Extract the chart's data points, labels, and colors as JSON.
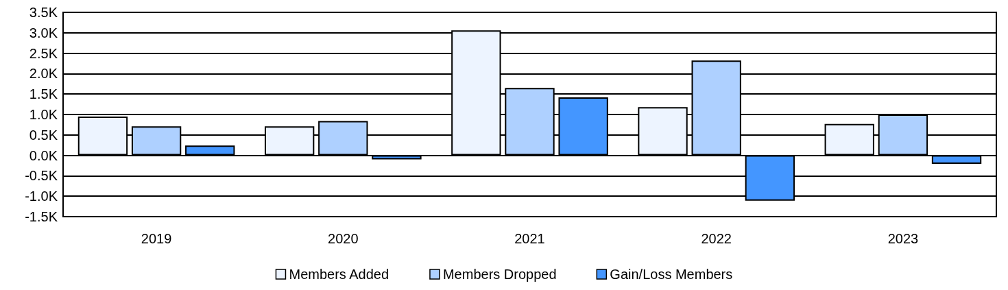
{
  "chart_data": {
    "type": "bar",
    "categories": [
      "2019",
      "2020",
      "2021",
      "2022",
      "2023"
    ],
    "series": [
      {
        "name": "Members Added",
        "color": "#edf4ff",
        "values": [
          950,
          710,
          3060,
          1180,
          770
        ]
      },
      {
        "name": "Members Dropped",
        "color": "#aed0ff",
        "values": [
          710,
          840,
          1650,
          2320,
          1000
        ]
      },
      {
        "name": "Gain/Loss Members",
        "color": "#4496ff",
        "values": [
          240,
          -100,
          1420,
          -1110,
          -210
        ]
      }
    ],
    "ylim": [
      -1500,
      3500
    ],
    "yticks": [
      {
        "value": -1500,
        "label": "-1.5K"
      },
      {
        "value": -1000,
        "label": "-1.0K"
      },
      {
        "value": -500,
        "label": "-0.5K"
      },
      {
        "value": 0,
        "label": "0.0K"
      },
      {
        "value": 500,
        "label": "0.5K"
      },
      {
        "value": 1000,
        "label": "1.0K"
      },
      {
        "value": 1500,
        "label": "1.5K"
      },
      {
        "value": 2000,
        "label": "2.0K"
      },
      {
        "value": 2500,
        "label": "2.5K"
      },
      {
        "value": 3000,
        "label": "3.0K"
      },
      {
        "value": 3500,
        "label": "3.5K"
      }
    ],
    "grid": "y",
    "legend": "bottom"
  }
}
